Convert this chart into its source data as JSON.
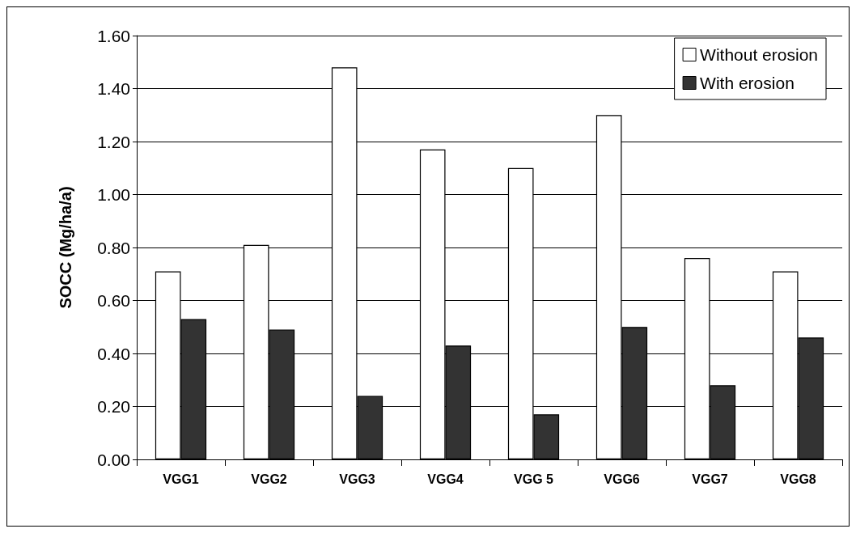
{
  "chart_data": {
    "type": "bar",
    "ylabel": "SOCC (Mg/ha/a)",
    "categories": [
      "VGG1",
      "VGG2",
      "VGG3",
      "VGG4",
      "VGG 5",
      "VGG6",
      "VGG7",
      "VGG8"
    ],
    "series": [
      {
        "name": "Without erosion",
        "color": "#ffffff",
        "values": [
          0.71,
          0.81,
          1.48,
          1.17,
          1.1,
          1.3,
          0.76,
          0.71
        ]
      },
      {
        "name": "With erosion",
        "color": "#333333",
        "values": [
          0.53,
          0.49,
          0.24,
          0.43,
          0.17,
          0.5,
          0.28,
          0.46
        ]
      }
    ],
    "ylim": [
      0,
      1.6
    ],
    "yticks": [
      {
        "value": 0,
        "label": "0.00"
      },
      {
        "value": 0.2,
        "label": "0.20"
      },
      {
        "value": 0.4,
        "label": "0.40"
      },
      {
        "value": 0.6,
        "label": "0.60"
      },
      {
        "value": 0.8,
        "label": "0.80"
      },
      {
        "value": 1.0,
        "label": "1.00"
      },
      {
        "value": 1.2,
        "label": "1.20"
      },
      {
        "value": 1.4,
        "label": "1.40"
      },
      {
        "value": 1.6,
        "label": "1.60"
      }
    ],
    "grid": "y",
    "legend": "top right"
  }
}
